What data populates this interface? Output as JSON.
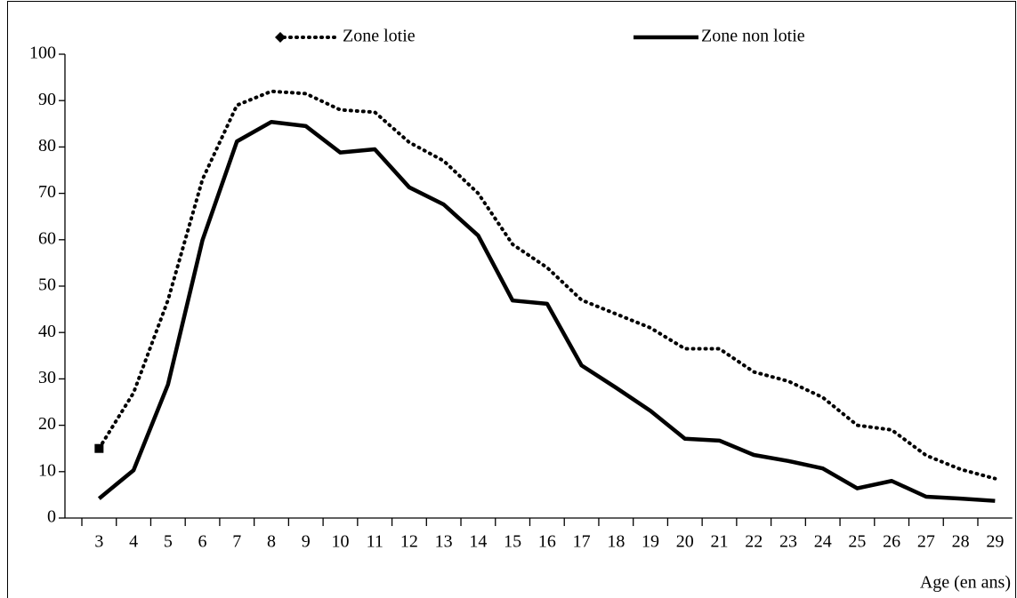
{
  "chart_data": {
    "type": "line",
    "x_label": "Age (en ans)",
    "categories": [
      "3",
      "4",
      "5",
      "6",
      "7",
      "8",
      "9",
      "10",
      "11",
      "12",
      "13",
      "14",
      "15",
      "16",
      "17",
      "18",
      "19",
      "20",
      "21",
      "22",
      "23",
      "24",
      "25",
      "26",
      "27",
      "28",
      "29"
    ],
    "series": [
      {
        "name": "Zone lotie",
        "color": "#000000",
        "style": "dotted",
        "values": [
          15,
          27,
          47,
          73,
          89,
          92,
          91.5,
          88,
          87.5,
          81,
          77,
          70,
          59,
          54,
          47,
          44,
          41,
          36.5,
          36.5,
          31.5,
          29.5,
          26,
          20,
          19,
          13.5,
          10.5,
          8.5
        ]
      },
      {
        "name": "Zone non lotie",
        "color": "#000000",
        "style": "solid",
        "values": [
          4.2,
          10.3,
          28.8,
          59.9,
          81.2,
          85.4,
          84.5,
          78.8,
          79.5,
          71.3,
          67.6,
          60.9,
          46.9,
          46.2,
          32.9,
          28.1,
          23.1,
          17.1,
          16.7,
          13.6,
          12.3,
          10.7,
          6.4,
          8,
          4.6,
          4.2,
          3.7
        ]
      }
    ],
    "ylim": [
      0,
      100
    ],
    "yticks": [
      0,
      10,
      20,
      30,
      40,
      50,
      60,
      70,
      80,
      90,
      100
    ],
    "grid": false
  }
}
